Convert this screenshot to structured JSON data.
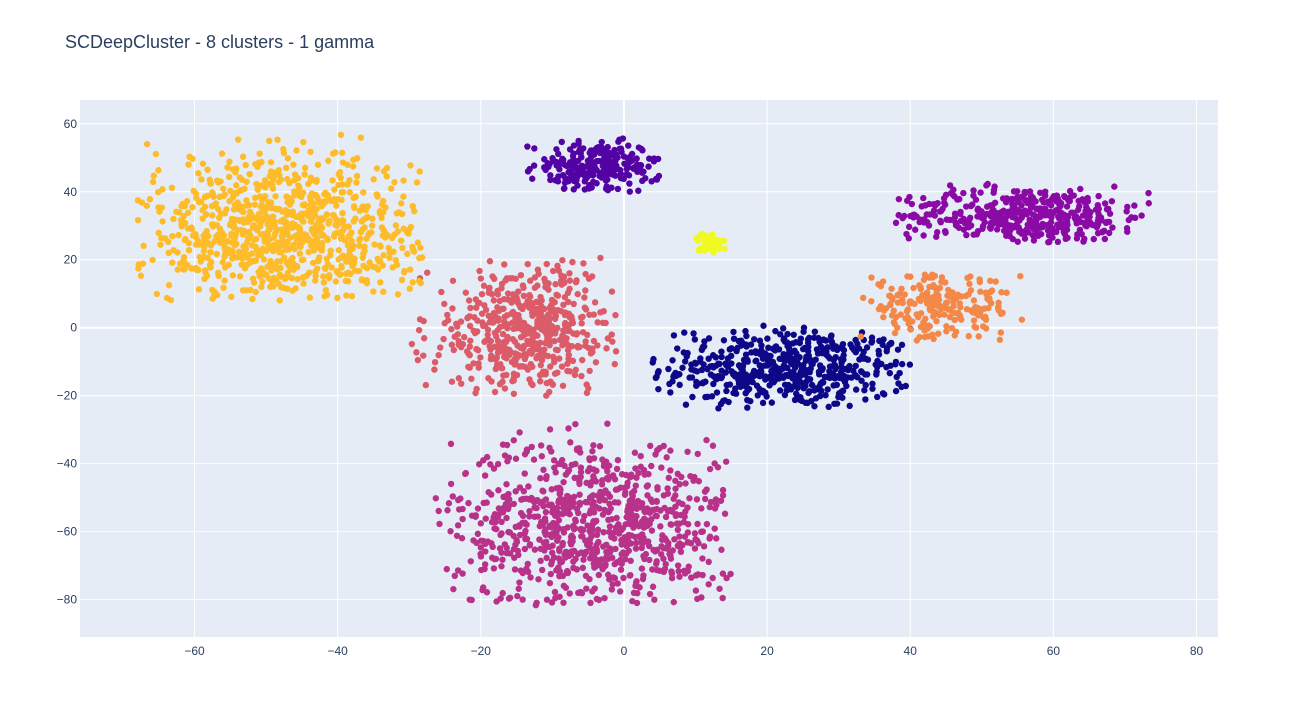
{
  "chart_data": {
    "type": "scatter",
    "title": "SCDeepCluster - 8 clusters - 1 gamma",
    "xlabel": "",
    "ylabel": "",
    "xlim": [
      -76,
      83
    ],
    "ylim": [
      -91,
      67
    ],
    "x_ticks": [
      -60,
      -40,
      -20,
      0,
      20,
      40,
      60,
      80
    ],
    "y_ticks": [
      60,
      40,
      20,
      0,
      -20,
      -40,
      -60,
      -80
    ],
    "x_tick_labels": [
      "−60",
      "−40",
      "−20",
      "0",
      "20",
      "40",
      "60",
      "80"
    ],
    "y_tick_labels": [
      "60",
      "40",
      "20",
      "0",
      "−20",
      "−40",
      "−60",
      "−80"
    ],
    "grid": true,
    "legend": "none",
    "background": "#e5ecf6",
    "clusters": [
      {
        "color": "#0d0887",
        "points_approx": 520,
        "center": [
          23,
          -12
        ],
        "x_range": [
          4,
          41
        ],
        "y_range": [
          -24,
          1
        ]
      },
      {
        "color": "#5302a3",
        "points_approx": 230,
        "center": [
          -4,
          47
        ],
        "x_range": [
          -14,
          5
        ],
        "y_range": [
          40,
          56
        ]
      },
      {
        "color": "#8b0aa5",
        "points_approx": 420,
        "center": [
          56,
          33
        ],
        "x_range": [
          38,
          75
        ],
        "y_range": [
          25,
          43
        ]
      },
      {
        "color": "#b83289",
        "points_approx": 850,
        "center": [
          -4,
          -58
        ],
        "x_range": [
          -27,
          15
        ],
        "y_range": [
          -82,
          -28
        ]
      },
      {
        "color": "#db5c68",
        "points_approx": 520,
        "center": [
          -13,
          -1
        ],
        "x_range": [
          -31,
          -1
        ],
        "y_range": [
          -20,
          21
        ]
      },
      {
        "color": "#f48849",
        "points_approx": 210,
        "center": [
          44,
          6
        ],
        "x_range": [
          33,
          56
        ],
        "y_range": [
          -4,
          16
        ]
      },
      {
        "color": "#febc2a",
        "points_approx": 900,
        "center": [
          -48,
          27
        ],
        "x_range": [
          -68,
          -28
        ],
        "y_range": [
          8,
          57
        ]
      },
      {
        "color": "#f0f921",
        "points_approx": 40,
        "center": [
          12,
          25
        ],
        "x_range": [
          10,
          15
        ],
        "y_range": [
          22,
          28
        ]
      }
    ]
  }
}
